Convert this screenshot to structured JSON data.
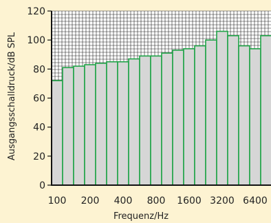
{
  "chart_data": {
    "type": "bar",
    "xlabel": "Frequenz/Hz",
    "ylabel": "Ausgangsschalldruck/dB SPL",
    "ylim": [
      0,
      120
    ],
    "yticks": [
      0,
      20,
      40,
      60,
      80,
      100,
      120
    ],
    "xtick_labels": [
      "100",
      "200",
      "400",
      "800",
      "1600",
      "3200",
      "6400"
    ],
    "x_scale": "log",
    "grid": "fine grid above bars",
    "bar_fill": "#d6d6d6",
    "bar_edge": "#1fa347",
    "categories": [
      "100",
      "125",
      "160",
      "200",
      "250",
      "315",
      "400",
      "500",
      "630",
      "800",
      "1000",
      "1250",
      "1600",
      "2000",
      "2500",
      "3150",
      "4000",
      "5000",
      "6300",
      "8000"
    ],
    "values": [
      72,
      81,
      82,
      83,
      84,
      85,
      85,
      87,
      89,
      89,
      91,
      93,
      94,
      96,
      100,
      106,
      103,
      96,
      94,
      103
    ]
  }
}
